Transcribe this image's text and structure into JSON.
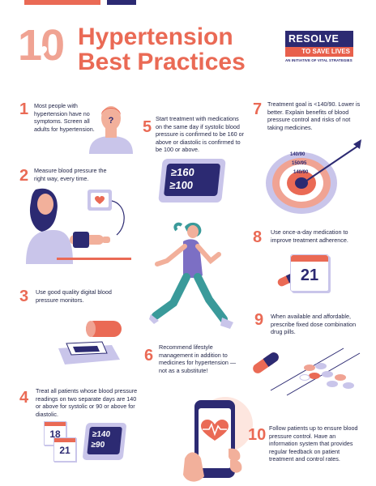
{
  "header": {
    "big_number": "10",
    "title_line1": "Hypertension",
    "title_line2": "Best Practices"
  },
  "logo": {
    "main": "RESOLVE",
    "sub": "TO SAVE LIVES",
    "tagline": "AN INITIATIVE OF VITAL STRATEGIES"
  },
  "items": [
    {
      "number": "1",
      "text": "Most people with hypertension have no symptoms. Screen all adults for hypertension."
    },
    {
      "number": "2",
      "text": "Measure blood pressure the right way, every time."
    },
    {
      "number": "3",
      "text": "Use good quality digital blood pressure monitors."
    },
    {
      "number": "4",
      "text": "Treat all patients whose blood pressure readings on two separate days are 140 or above for systolic or 90 or above for diastolic."
    },
    {
      "number": "5",
      "text": "Start treatment with medications on the same day if systolic blood pressure is confirmed to be 160 or above or diastolic is confirmed to be 100 or above."
    },
    {
      "number": "6",
      "text": "Recommend lifestyle management in addition to medicines for hypertension — not as a substitute!"
    },
    {
      "number": "7",
      "text": "Treatment goal is <140/90. Lower is better. Explain benefits of blood pressure control and risks of not taking medicines."
    },
    {
      "number": "8",
      "text": "Use once-a-day medication to improve treatment adherence."
    },
    {
      "number": "9",
      "text": "When available and affordable, prescribe fixed dose combination drug pills."
    },
    {
      "number": "10",
      "text": "Follow patients up to ensure blood pressure control. Have an information system that provides regular feedback on patient treatment and control rates."
    }
  ],
  "illustrations": {
    "monitor_5_top": "≥160",
    "monitor_5_bottom": "≥100",
    "target_label_1": "140/90",
    "target_label_2": "150/95",
    "target_label_3": "140/90",
    "calendar_8_day": "21",
    "calendar_4_day1": "18",
    "calendar_4_day2": "21",
    "monitor_4_top": "≥140",
    "monitor_4_bottom": "≥90"
  },
  "colors": {
    "coral": "#ea6a55",
    "light_coral": "#f0a393",
    "navy": "#2c2a72",
    "lavender": "#c9c5ea",
    "teal": "#3a9a9a",
    "purple": "#7c6fc4"
  }
}
